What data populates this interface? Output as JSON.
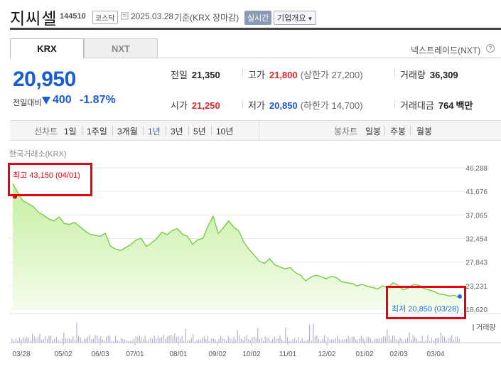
{
  "header": {
    "name": "지씨셀",
    "code": "144510",
    "market": "코스닥",
    "date": "2025.03.28",
    "basis": "기준(KRX 장마감)",
    "realtime_label": "실시간",
    "company_info_label": "기업개요"
  },
  "tabs": {
    "krx": "KRX",
    "nxt": "NXT",
    "nxt_link": "넥스트레이드(NXT)",
    "help": "?"
  },
  "price": {
    "current": "20,950",
    "change_label": "전일대비",
    "change_amount": "400",
    "change_rate": "-1.87%"
  },
  "stats": {
    "prev_close_label": "전일",
    "prev_close": "21,350",
    "high_label": "고가",
    "high": "21,800",
    "upper_limit": "(상한가 27,200)",
    "volume_label": "거래량",
    "volume": "36,309",
    "open_label": "시가",
    "open": "21,250",
    "low_label": "저가",
    "low": "20,850",
    "lower_limit": "(하한가 14,700)",
    "amount_label": "거래대금",
    "amount": "764",
    "amount_unit": "백만"
  },
  "periods": {
    "line_label": "선차트",
    "items": [
      "1일",
      "1주일",
      "3개월",
      "1년",
      "3년",
      "5년",
      "10년"
    ],
    "active": "1년",
    "candle_label": "봉차트",
    "candle_items": [
      "일봉",
      "주봉",
      "월봉"
    ]
  },
  "chart": {
    "exchange": "한국거래소(KRX)",
    "max_label": "최고 43,150 (04/01)",
    "min_label": "최저 20,850 (03/28)",
    "volume_legend": "거래량",
    "colors": {
      "line": "#6fc93a",
      "fill_top": "#c5ef9f",
      "fill_bottom": "#f4fcec",
      "bar": "#a9a0c9",
      "max": "#e60012",
      "min": "#1a73d1"
    }
  },
  "chart_data": {
    "type": "area",
    "y_ticks": [
      "46,288",
      "41,676",
      "37,065",
      "32,454",
      "27,843",
      "23,231",
      "18,620"
    ],
    "ylim": [
      18620,
      46288
    ],
    "x_ticks": [
      "03/28",
      "05/02",
      "06/03",
      "07/01",
      "08/01",
      "09/02",
      "10/02",
      "11/01",
      "12/02",
      "01/02",
      "02/03",
      "03/04"
    ],
    "series": [
      {
        "values": [
          43150,
          41400,
          39800,
          39300,
          38700,
          37600,
          37000,
          36300,
          35900,
          36700,
          35400,
          35200,
          35600,
          34800,
          34000,
          33300,
          33100,
          32900,
          33500,
          31000,
          30400,
          30100,
          30700,
          31300,
          32200,
          32500,
          30900,
          31600,
          32400,
          33700,
          33200,
          34000,
          34400,
          33300,
          32900,
          31300,
          32200,
          32500,
          34900,
          36800,
          33400,
          34600,
          35900,
          34700,
          33900,
          31700,
          30300,
          29200,
          28000,
          27600,
          28500,
          27300,
          26900,
          26500,
          26800,
          25800,
          25300,
          24200,
          24900,
          25300,
          25000,
          24600,
          25100,
          24800,
          24000,
          23800,
          23700,
          23200,
          23500,
          23100,
          22900,
          22600,
          23200,
          22800,
          23800,
          23300,
          22400,
          22800,
          23500,
          23300,
          22700,
          22400,
          22100,
          21600,
          21500,
          21200,
          21350,
          20850
        ]
      }
    ]
  }
}
